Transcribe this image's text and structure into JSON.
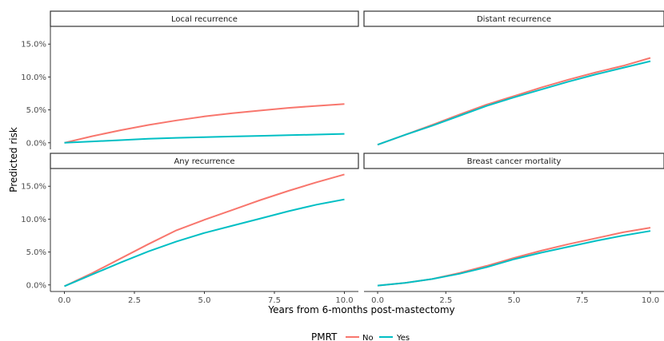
{
  "chart_data": {
    "type": "line",
    "xlabel": "Years from 6-months post-mastectomy",
    "ylabel": "Predicted risk",
    "x_ticks": [
      "0.0",
      "2.5",
      "5.0",
      "7.5",
      "10.0"
    ],
    "y_ticks": [
      "0.0%",
      "5.0%",
      "10.0%",
      "15.0%"
    ],
    "xlim": [
      0,
      10
    ],
    "ylim": [
      0,
      17.5
    ],
    "grid": false,
    "legend": {
      "title": "PMRT",
      "position": "bottom",
      "entries": [
        {
          "label": "No",
          "color": "#F8766D"
        },
        {
          "label": "Yes",
          "color": "#00BFC4"
        }
      ]
    },
    "panels": [
      {
        "title": "Local recurrence",
        "series": [
          {
            "name": "No",
            "x": [
              0,
              1,
              2,
              3,
              4,
              5,
              6,
              7,
              8,
              9,
              10
            ],
            "y": [
              0.0,
              1.0,
              1.9,
              2.7,
              3.4,
              4.0,
              4.5,
              4.9,
              5.3,
              5.6,
              5.9
            ]
          },
          {
            "name": "Yes",
            "x": [
              0,
              1,
              2,
              3,
              4,
              5,
              6,
              7,
              8,
              9,
              10
            ],
            "y": [
              0.0,
              0.2,
              0.4,
              0.6,
              0.75,
              0.85,
              0.95,
              1.05,
              1.15,
              1.25,
              1.35
            ]
          }
        ]
      },
      {
        "title": "Distant recurrence",
        "series": [
          {
            "name": "No",
            "x": [
              0,
              1,
              2,
              3,
              4,
              5,
              6,
              7,
              8,
              9,
              10
            ],
            "y": [
              -0.3,
              1.2,
              2.7,
              4.3,
              5.8,
              7.1,
              8.4,
              9.6,
              10.7,
              11.7,
              12.9
            ]
          },
          {
            "name": "Yes",
            "x": [
              0,
              1,
              2,
              3,
              4,
              5,
              6,
              7,
              8,
              9,
              10
            ],
            "y": [
              -0.3,
              1.2,
              2.6,
              4.1,
              5.6,
              6.9,
              8.1,
              9.3,
              10.4,
              11.4,
              12.4
            ]
          }
        ]
      },
      {
        "title": "Any recurrence",
        "series": [
          {
            "name": "No",
            "x": [
              0,
              1,
              2,
              3,
              4,
              5,
              6,
              7,
              8,
              9,
              10
            ],
            "y": [
              -0.2,
              1.8,
              4.0,
              6.2,
              8.3,
              9.9,
              11.4,
              12.9,
              14.3,
              15.6,
              16.8
            ]
          },
          {
            "name": "Yes",
            "x": [
              0,
              1,
              2,
              3,
              4,
              5,
              6,
              7,
              8,
              9,
              10
            ],
            "y": [
              -0.2,
              1.6,
              3.4,
              5.1,
              6.6,
              7.9,
              9.0,
              10.1,
              11.2,
              12.2,
              13.0
            ]
          }
        ]
      },
      {
        "title": "Breast cancer mortality",
        "series": [
          {
            "name": "No",
            "x": [
              0,
              1,
              2,
              3,
              4,
              5,
              6,
              7,
              8,
              9,
              10
            ],
            "y": [
              -0.1,
              0.3,
              0.9,
              1.8,
              2.9,
              4.1,
              5.2,
              6.2,
              7.1,
              8.0,
              8.7
            ]
          },
          {
            "name": "Yes",
            "x": [
              0,
              1,
              2,
              3,
              4,
              5,
              6,
              7,
              8,
              9,
              10
            ],
            "y": [
              -0.1,
              0.3,
              0.9,
              1.7,
              2.7,
              3.9,
              4.9,
              5.8,
              6.7,
              7.5,
              8.2
            ]
          }
        ]
      }
    ]
  }
}
